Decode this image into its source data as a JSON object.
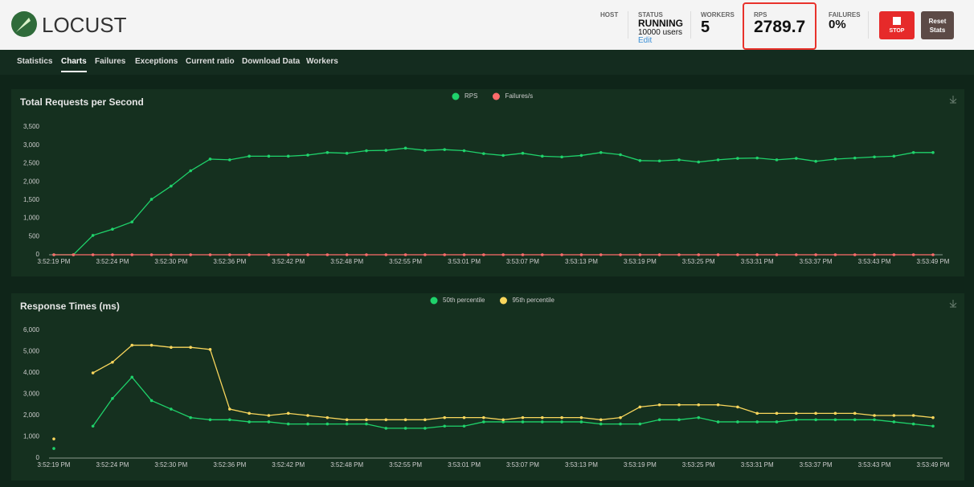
{
  "header": {
    "logo": "LOCUST",
    "host_label": "HOST",
    "status_label": "STATUS",
    "status": "RUNNING",
    "users": "10000 users",
    "edit": "Edit",
    "workers_label": "WORKERS",
    "workers": "5",
    "rps_label": "RPS",
    "rps": "2789.7",
    "failures_label": "FAILURES",
    "failures": "0%",
    "stop": "STOP",
    "reset": "Reset Stats"
  },
  "tabs": [
    "Statistics",
    "Charts",
    "Failures",
    "Exceptions",
    "Current ratio",
    "Download Data",
    "Workers"
  ],
  "active_tab": 1,
  "chart_data": [
    {
      "type": "line",
      "title": "Total Requests per Second",
      "legend": "top",
      "categories": [
        "3:52:19 PM",
        null,
        null,
        "3:52:24 PM",
        null,
        null,
        "3:52:30 PM",
        null,
        null,
        "3:52:36 PM",
        null,
        null,
        "3:52:42 PM",
        null,
        null,
        "3:52:48 PM",
        null,
        null,
        "3:52:55 PM",
        null,
        null,
        "3:53:01 PM",
        null,
        null,
        "3:53:07 PM",
        null,
        null,
        "3:53:13 PM",
        null,
        null,
        "3:53:19 PM",
        null,
        null,
        "3:53:25 PM",
        null,
        null,
        "3:53:31 PM",
        null,
        null,
        "3:53:37 PM",
        null,
        null,
        "3:53:43 PM",
        null,
        null,
        "3:53:49 PM"
      ],
      "series": [
        {
          "name": "RPS",
          "color": "#1fd26b",
          "values": [
            0,
            0,
            530,
            700,
            900,
            1520,
            1880,
            2300,
            2620,
            2600,
            2700,
            2700,
            2700,
            2730,
            2800,
            2780,
            2850,
            2860,
            2920,
            2860,
            2880,
            2850,
            2770,
            2720,
            2780,
            2700,
            2680,
            2720,
            2800,
            2740,
            2580,
            2570,
            2600,
            2540,
            2600,
            2640,
            2650,
            2600,
            2640,
            2560,
            2620,
            2650,
            2680,
            2700,
            2800,
            2800
          ]
        },
        {
          "name": "Failures/s",
          "color": "#ff6b6b",
          "values": [
            0,
            0,
            0,
            0,
            0,
            0,
            0,
            0,
            0,
            0,
            0,
            0,
            0,
            0,
            0,
            0,
            0,
            0,
            0,
            0,
            0,
            0,
            0,
            0,
            0,
            0,
            0,
            0,
            0,
            0,
            0,
            0,
            0,
            0,
            0,
            0,
            0,
            0,
            0,
            0,
            0,
            0,
            0,
            0,
            0,
            0
          ]
        }
      ],
      "ylim": [
        0,
        3500
      ],
      "yticks": [
        0,
        500,
        {
          "value": 1000,
          "label": "1,000"
        },
        {
          "value": 1500,
          "label": "1,500"
        },
        {
          "value": 2000,
          "label": "2,000"
        },
        {
          "value": 2500,
          "label": "2,500"
        },
        {
          "value": 3000,
          "label": "3,000"
        },
        {
          "value": 3500,
          "label": "3,500"
        }
      ]
    },
    {
      "type": "line",
      "title": "Response Times (ms)",
      "legend": "top",
      "categories": [
        "3:52:19 PM",
        null,
        null,
        "3:52:24 PM",
        null,
        null,
        "3:52:30 PM",
        null,
        null,
        "3:52:36 PM",
        null,
        null,
        "3:52:42 PM",
        null,
        null,
        "3:52:48 PM",
        null,
        null,
        "3:52:55 PM",
        null,
        null,
        "3:53:01 PM",
        null,
        null,
        "3:53:07 PM",
        null,
        null,
        "3:53:13 PM",
        null,
        null,
        "3:53:19 PM",
        null,
        null,
        "3:53:25 PM",
        null,
        null,
        "3:53:31 PM",
        null,
        null,
        "3:53:37 PM",
        null,
        null,
        "3:53:43 PM",
        null,
        null,
        "3:53:49 PM"
      ],
      "series": [
        {
          "name": "50th percentile",
          "color": "#1fd26b",
          "values": [
            450,
            null,
            1500,
            2800,
            3800,
            2700,
            2300,
            1900,
            1800,
            1800,
            1700,
            1700,
            1600,
            1600,
            1600,
            1600,
            1600,
            1400,
            1400,
            1400,
            1500,
            1500,
            1700,
            1700,
            1700,
            1700,
            1700,
            1700,
            1600,
            1600,
            1600,
            1800,
            1800,
            1900,
            1700,
            1700,
            1700,
            1700,
            1800,
            1800,
            1800,
            1800,
            1800,
            1700,
            1600,
            1500
          ]
        },
        {
          "name": "95th percentile",
          "color": "#f9d65c",
          "values": [
            900,
            null,
            4000,
            4500,
            5300,
            5300,
            5200,
            5200,
            5100,
            2300,
            2100,
            2000,
            2100,
            2000,
            1900,
            1800,
            1800,
            1800,
            1800,
            1800,
            1900,
            1900,
            1900,
            1800,
            1900,
            1900,
            1900,
            1900,
            1800,
            1900,
            2400,
            2500,
            2500,
            2500,
            2500,
            2400,
            2100,
            2100,
            2100,
            2100,
            2100,
            2100,
            2000,
            2000,
            2000,
            1900
          ]
        }
      ],
      "ylim": [
        0,
        6000
      ],
      "yticks": [
        0,
        {
          "value": 1000,
          "label": "1,000"
        },
        {
          "value": 2000,
          "label": "2,000"
        },
        {
          "value": 3000,
          "label": "3,000"
        },
        {
          "value": 4000,
          "label": "4,000"
        },
        {
          "value": 5000,
          "label": "5,000"
        },
        {
          "value": 6000,
          "label": "6,000"
        }
      ]
    }
  ]
}
